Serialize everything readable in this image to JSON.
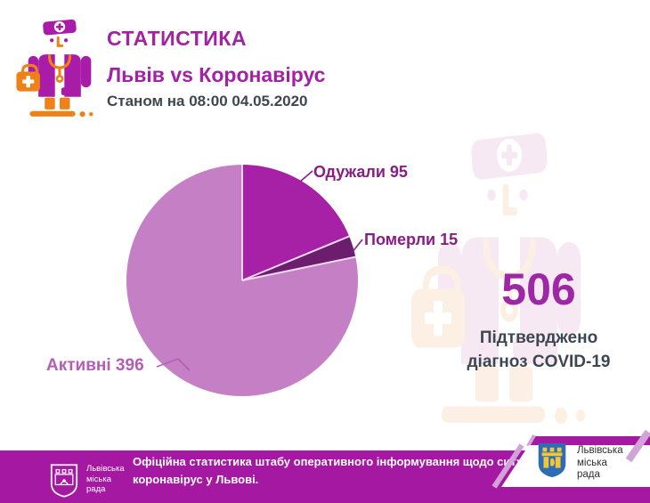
{
  "header": {
    "title": "СТАТИСТИКА",
    "subtitle": "Львів vs Коронавірус",
    "as_of": "Станом на 08:00 04.05.2020"
  },
  "chart_data": {
    "type": "pie",
    "start_angle_deg": 0,
    "direction": "clockwise",
    "total": 506,
    "slices": [
      {
        "label": "Одужали",
        "value": 95,
        "color": "#a621a6",
        "label_text": "Одужали 95"
      },
      {
        "label": "Померли",
        "value": 15,
        "color": "#6d1d6d",
        "label_text": "Померли 15"
      },
      {
        "label": "Активні",
        "value": 396,
        "color": "#c57fc5",
        "label_text": "Активні 396"
      }
    ]
  },
  "summary": {
    "total": "506",
    "caption_line1": "Підтверджено",
    "caption_line2": "діагноз COVID-19"
  },
  "footer": {
    "logo_lines": [
      "Львівська",
      "міська",
      "рада"
    ],
    "text_line1": "Офіційна статистика штабу оперативного інформування щодо ситуації із захворю",
    "text_line2": "коронавірус у Львові."
  },
  "corner": {
    "lines": [
      "Львівська",
      "міська",
      "рада"
    ]
  },
  "colors": {
    "brand": "#a321a3",
    "brand_icon": "#a81ca8",
    "orange": "#ef8216",
    "text_dark": "#3e4751",
    "big_number": "#9d27a4",
    "label_dark": "#8a1c87",
    "label_active": "#b55cb5",
    "footer_bg": "#a518a2",
    "lavender": "#d2a3d8",
    "shield_blue": "#2e6db5",
    "shield_yellow": "#f2c63a"
  }
}
